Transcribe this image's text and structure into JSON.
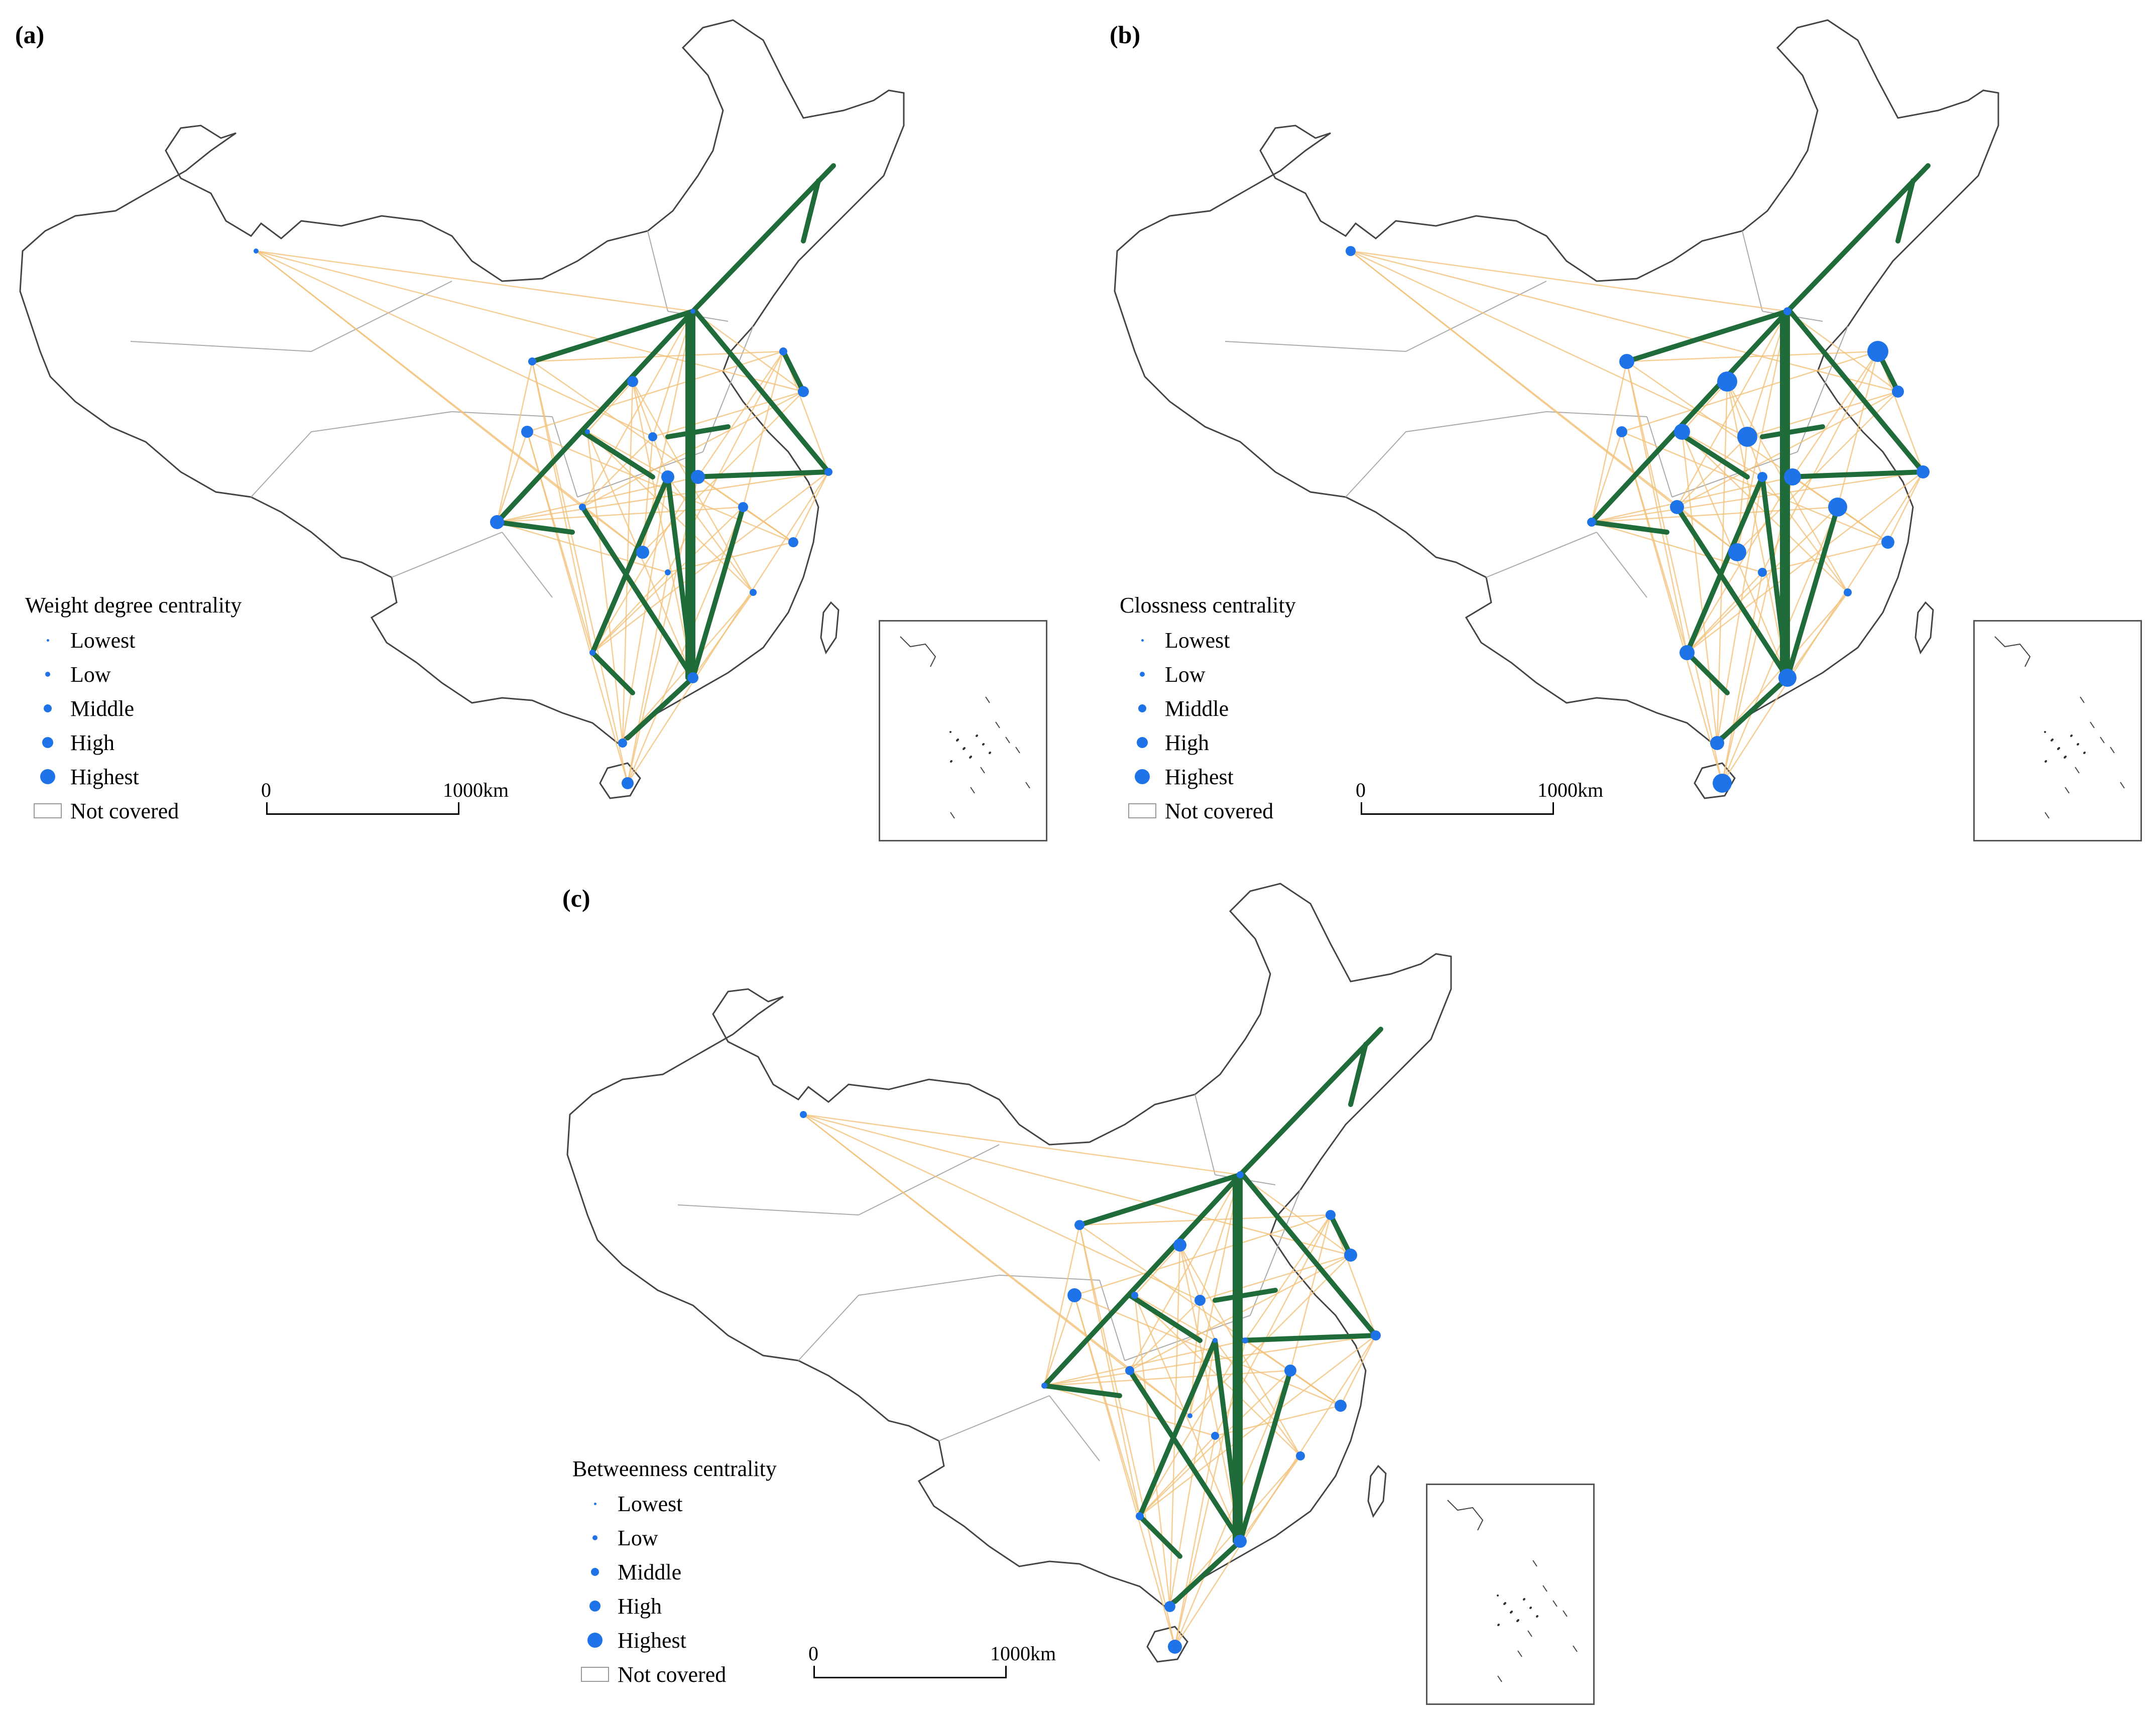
{
  "colors": {
    "node": "#1e73e8",
    "strong_link": "#1f6b3a",
    "weak_link": "#f2c27a",
    "boundary": "#444444",
    "not_covered": "#aaaaaa"
  },
  "legend_levels": [
    "Lowest",
    "Low",
    "Middle",
    "High",
    "Highest"
  ],
  "not_covered_label": "Not covered",
  "scale_bar": {
    "zero": "0",
    "end": "1000",
    "unit": "km"
  },
  "panels": [
    {
      "id": "a",
      "label": "(a)",
      "legend_title": "Weight degree centrality"
    },
    {
      "id": "b",
      "label": "(b)",
      "legend_title": "Clossness centrality"
    },
    {
      "id": "c",
      "label": "(c)",
      "legend_title": "Betweenness centrality"
    }
  ]
}
